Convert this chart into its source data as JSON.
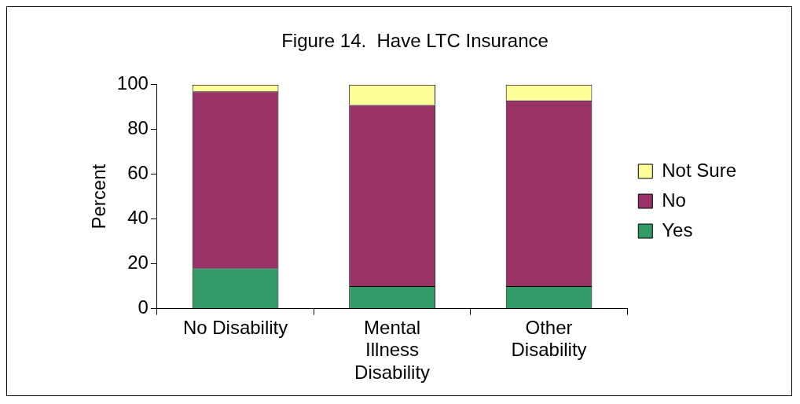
{
  "chart_data": {
    "type": "bar",
    "title": "Figure 14.  Have LTC Insurance",
    "ylabel": "Percent",
    "categories": [
      "No Disability",
      "Mental Illness Disability",
      "Other Disability"
    ],
    "stacked": true,
    "series": [
      {
        "name": "Yes",
        "color": "#339966",
        "values": [
          18,
          10,
          10
        ]
      },
      {
        "name": "No",
        "color": "#993366",
        "values": [
          79,
          81,
          83
        ]
      },
      {
        "name": "Not Sure",
        "color": "#ffff99",
        "values": [
          3,
          9,
          7
        ]
      }
    ],
    "ylim": [
      0,
      100
    ],
    "yticks": [
      0,
      20,
      40,
      60,
      80,
      100
    ],
    "grid": false,
    "legend": "right"
  }
}
